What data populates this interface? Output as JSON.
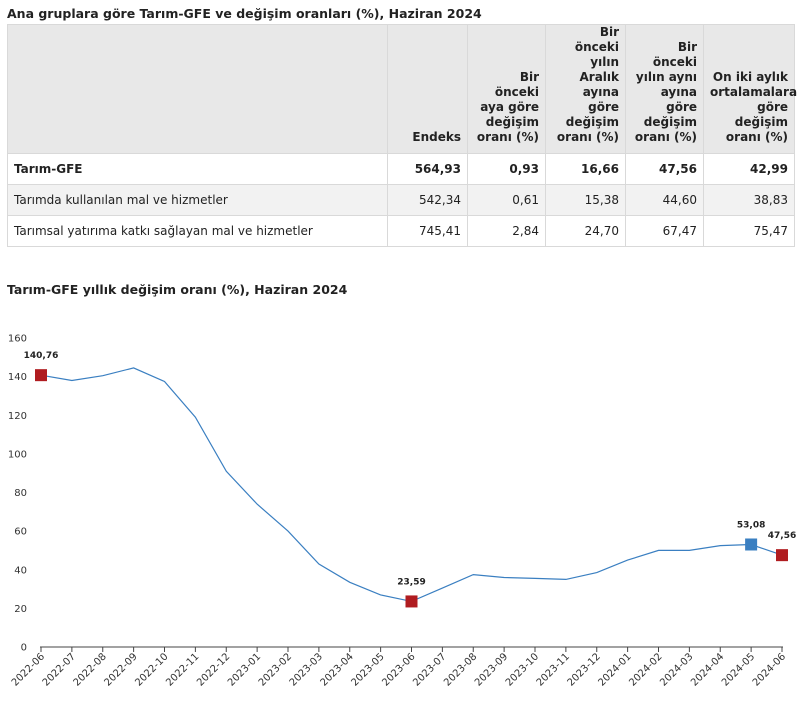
{
  "table": {
    "title": "Ana gruplara göre Tarım-GFE ve değişim oranları (%), Haziran 2024",
    "columns": [
      [
        "Endeks"
      ],
      [
        "Bir önceki",
        "aya göre",
        "değişim",
        "oranı (%)"
      ],
      [
        "Bir önceki",
        "yılın Aralık",
        "ayına göre",
        "değişim",
        "oranı (%)"
      ],
      [
        "Bir önceki",
        "yılın aynı",
        "ayına göre",
        "değişim",
        "oranı (%)"
      ],
      [
        "On iki aylık",
        "ortalamalara",
        "göre",
        "değişim",
        "oranı (%)"
      ]
    ],
    "rows": [
      {
        "label": "Tarım-GFE",
        "values": [
          "564,93",
          "0,93",
          "16,66",
          "47,56",
          "42,99"
        ]
      },
      {
        "label": "Tarımda kullanılan mal ve hizmetler",
        "values": [
          "542,34",
          "0,61",
          "15,38",
          "44,60",
          "38,83"
        ]
      },
      {
        "label": "Tarımsal yatırıma katkı sağlayan mal ve hizmetler",
        "values": [
          "745,41",
          "2,84",
          "24,70",
          "67,47",
          "75,47"
        ]
      }
    ]
  },
  "chart_data": {
    "type": "line",
    "title": "Tarım-GFE yıllık değişim oranı (%), Haziran 2024",
    "xlabel": "",
    "ylabel": "",
    "ylim": [
      0,
      160
    ],
    "yticks": [
      0,
      20,
      40,
      60,
      80,
      100,
      120,
      140,
      160
    ],
    "grid": false,
    "line_color": "#3a7fc1",
    "categories": [
      "2022-06",
      "2022-07",
      "2022-08",
      "2022-09",
      "2022-10",
      "2022-11",
      "2022-12",
      "2023-01",
      "2023-02",
      "2023-03",
      "2023-04",
      "2023-05",
      "2023-06",
      "2023-07",
      "2023-08",
      "2023-09",
      "2023-10",
      "2023-11",
      "2023-12",
      "2024-01",
      "2024-02",
      "2024-03",
      "2024-04",
      "2024-05",
      "2024-06"
    ],
    "values": [
      140.76,
      138,
      140.5,
      144.5,
      137.5,
      119,
      91,
      74,
      60,
      43,
      33.5,
      27,
      23.59,
      30.5,
      37.5,
      36,
      35.5,
      35,
      38.5,
      45,
      50,
      50,
      52.5,
      53.08,
      47.56
    ],
    "markers": [
      {
        "index": 0,
        "label": "140,76",
        "color": "#b01c20"
      },
      {
        "index": 12,
        "label": "23,59",
        "color": "#b01c20"
      },
      {
        "index": 23,
        "label": "53,08",
        "color": "#3a7fc1"
      },
      {
        "index": 24,
        "label": "47,56",
        "color": "#b01c20"
      }
    ]
  }
}
